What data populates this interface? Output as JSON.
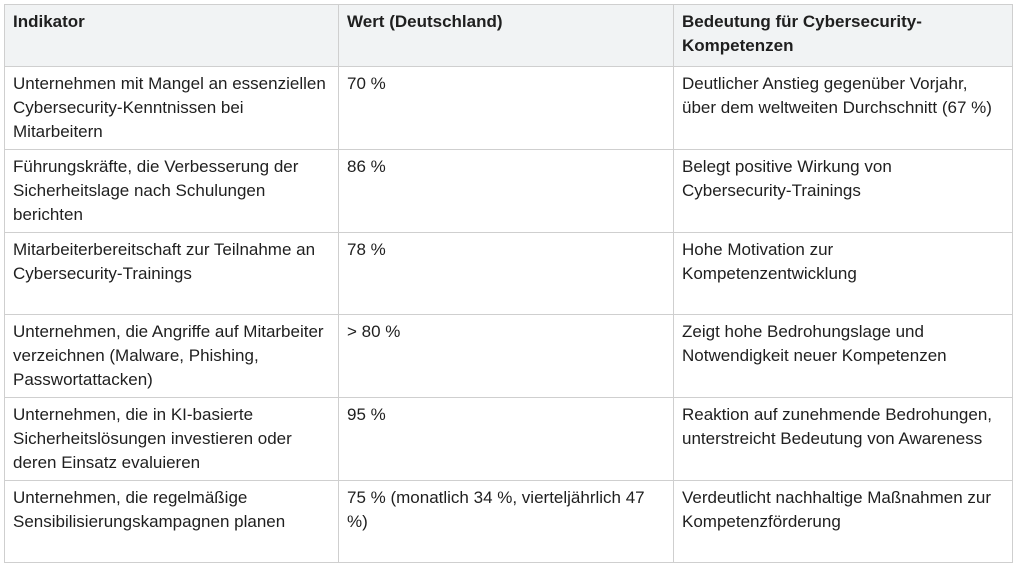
{
  "table": {
    "header": [
      "Indikator",
      "Wert (Deutschland)",
      "Bedeutung für Cybersecurity-Kompetenzen"
    ],
    "rows": [
      [
        "Unternehmen mit Mangel an essenziellen Cybersecurity-Kenntnissen bei Mitarbeitern",
        "70 %",
        "Deutlicher Anstieg gegenüber Vorjahr, über dem weltweiten Durchschnitt (67 %)"
      ],
      [
        "Führungskräfte, die Verbesserung der Sicherheitslage nach Schulungen berichten",
        "86 %",
        "Belegt positive Wirkung von Cybersecurity-Trainings"
      ],
      [
        "Mitarbeiterbereitschaft zur Teilnahme an Cybersecurity-Trainings",
        "78 %",
        "Hohe Motivation zur Kompetenzentwicklung"
      ],
      [
        "Unternehmen, die Angriffe auf Mitarbeiter verzeichnen (Malware, Phishing, Passwortattacken)",
        "> 80 %",
        "Zeigt hohe Bedrohungslage und Notwendigkeit neuer Kompetenzen"
      ],
      [
        "Unternehmen, die in KI-basierte Sicherheitslösungen investieren oder deren Einsatz evaluieren",
        "95 %",
        "Reaktion auf zunehmende Bedrohungen, unterstreicht Bedeutung von Awareness"
      ],
      [
        "Unternehmen, die regelmäßige Sensibilisierungskampagnen planen",
        "75 % (monatlich 34 %, vierteljährlich 47 %)",
        "Verdeutlicht nachhaltige Maßnahmen zur Kompetenzförderung"
      ]
    ]
  }
}
